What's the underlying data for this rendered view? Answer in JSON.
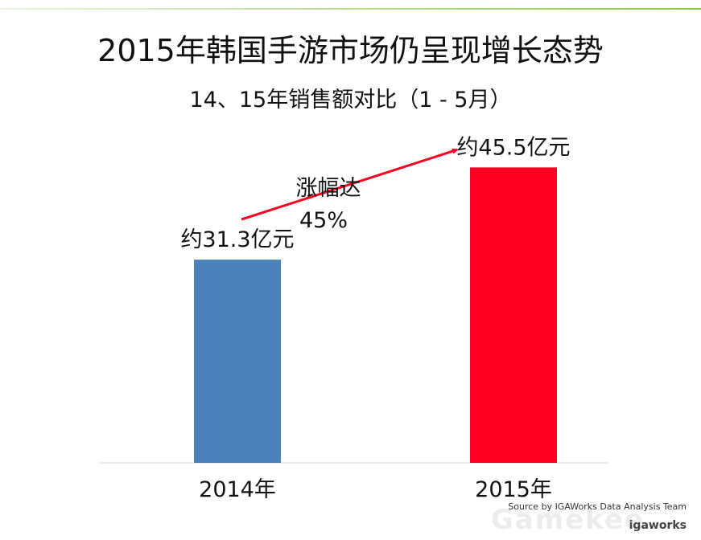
{
  "chart_data": {
    "type": "bar",
    "title": "2015年韩国手游市场仍呈现增长态势",
    "subtitle": "14、15年销售额对比（1 - 5月）",
    "categories": [
      "2014年",
      "2015年"
    ],
    "values": [
      31.3,
      45.5
    ],
    "data_labels": [
      "约31.3亿元",
      "约45.5亿元"
    ],
    "colors": [
      "#4a81bd",
      "#ff0022"
    ],
    "ylim": [
      0,
      50
    ],
    "grid": false,
    "annotation": {
      "line1": "涨幅达",
      "line2": "45%",
      "color": "#ff0022"
    },
    "xlabel": "",
    "ylabel": ""
  },
  "footer": {
    "source": "Source by IGAWorks Data Analysis Team",
    "logo": "igaworks",
    "watermark": "Gamekee"
  }
}
